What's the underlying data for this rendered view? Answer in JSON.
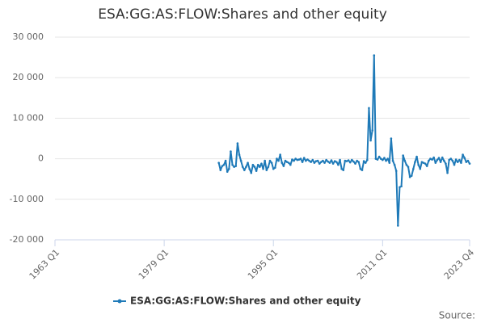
{
  "chart_data": {
    "type": "line",
    "title": "ESA:GG:AS:FLOW:Shares and other equity",
    "x": [
      "1987 Q1",
      "1987 Q2",
      "1987 Q3",
      "1987 Q4",
      "1988 Q1",
      "1988 Q2",
      "1988 Q3",
      "1988 Q4",
      "1989 Q1",
      "1989 Q2",
      "1989 Q3",
      "1989 Q4",
      "1990 Q1",
      "1990 Q2",
      "1990 Q3",
      "1990 Q4",
      "1991 Q1",
      "1991 Q2",
      "1991 Q3",
      "1991 Q4",
      "1992 Q1",
      "1992 Q2",
      "1992 Q3",
      "1992 Q4",
      "1993 Q1",
      "1993 Q2",
      "1993 Q3",
      "1993 Q4",
      "1994 Q1",
      "1994 Q2",
      "1994 Q3",
      "1994 Q4",
      "1995 Q1",
      "1995 Q2",
      "1995 Q3",
      "1995 Q4",
      "1996 Q1",
      "1996 Q2",
      "1996 Q3",
      "1996 Q4",
      "1997 Q1",
      "1997 Q2",
      "1997 Q3",
      "1997 Q4",
      "1998 Q1",
      "1998 Q2",
      "1998 Q3",
      "1998 Q4",
      "1999 Q1",
      "1999 Q2",
      "1999 Q3",
      "1999 Q4",
      "2000 Q1",
      "2000 Q2",
      "2000 Q3",
      "2000 Q4",
      "2001 Q1",
      "2001 Q2",
      "2001 Q3",
      "2001 Q4",
      "2002 Q1",
      "2002 Q2",
      "2002 Q3",
      "2002 Q4",
      "2003 Q1",
      "2003 Q2",
      "2003 Q3",
      "2003 Q4",
      "2004 Q1",
      "2004 Q2",
      "2004 Q3",
      "2004 Q4",
      "2005 Q1",
      "2005 Q2",
      "2005 Q3",
      "2005 Q4",
      "2006 Q1",
      "2006 Q2",
      "2006 Q3",
      "2006 Q4",
      "2007 Q1",
      "2007 Q2",
      "2007 Q3",
      "2007 Q4",
      "2008 Q1",
      "2008 Q2",
      "2008 Q3",
      "2008 Q4",
      "2009 Q1",
      "2009 Q2",
      "2009 Q3",
      "2009 Q4",
      "2010 Q1",
      "2010 Q2",
      "2010 Q3",
      "2010 Q4",
      "2011 Q1",
      "2011 Q2",
      "2011 Q3",
      "2011 Q4",
      "2012 Q1",
      "2012 Q2",
      "2012 Q3",
      "2012 Q4",
      "2013 Q1",
      "2013 Q2",
      "2013 Q3",
      "2013 Q4",
      "2014 Q1",
      "2014 Q2",
      "2014 Q3",
      "2014 Q4",
      "2015 Q1",
      "2015 Q2",
      "2015 Q3",
      "2015 Q4",
      "2016 Q1",
      "2016 Q2",
      "2016 Q3",
      "2016 Q4",
      "2017 Q1",
      "2017 Q2",
      "2017 Q3",
      "2017 Q4",
      "2018 Q1",
      "2018 Q2",
      "2018 Q3",
      "2018 Q4",
      "2019 Q1",
      "2019 Q2",
      "2019 Q3",
      "2019 Q4",
      "2020 Q1",
      "2020 Q2",
      "2020 Q3",
      "2020 Q4",
      "2021 Q1",
      "2021 Q2",
      "2021 Q3",
      "2021 Q4",
      "2022 Q1",
      "2022 Q2",
      "2022 Q3",
      "2022 Q4",
      "2023 Q1",
      "2023 Q2",
      "2023 Q3",
      "2023 Q4"
    ],
    "series": [
      {
        "name": "ESA:GG:AS:FLOW:Shares and other equity",
        "color": "#1f7ab8",
        "values": [
          -1000,
          -2800,
          -1800,
          -1500,
          -500,
          -3200,
          -2500,
          1800,
          -1500,
          -2000,
          -1800,
          3800,
          1000,
          -500,
          -2000,
          -2800,
          -2000,
          -1000,
          -2500,
          -3500,
          -1500,
          -2000,
          -3000,
          -1500,
          -2000,
          -1200,
          -2500,
          -500,
          -2800,
          -2000,
          -500,
          -1000,
          -2500,
          -2200,
          0,
          -500,
          1000,
          -1000,
          -1800,
          -500,
          -800,
          -1000,
          -1500,
          -200,
          -500,
          0,
          -300,
          -200,
          0,
          -800,
          200,
          -500,
          -200,
          -500,
          -800,
          -300,
          -1000,
          -600,
          -500,
          -1200,
          -800,
          -500,
          -1000,
          -300,
          -700,
          -1000,
          -400,
          -1200,
          -600,
          -800,
          -1500,
          -300,
          -2500,
          -2800,
          -500,
          -600,
          -400,
          -900,
          -300,
          -700,
          -1200,
          -500,
          -800,
          -2500,
          -2800,
          -600,
          -1000,
          -300,
          12500,
          4500,
          7000,
          25500,
          0,
          -200,
          500,
          0,
          -300,
          200,
          -500,
          0,
          -1000,
          5000,
          -500,
          -1500,
          -3000,
          -16500,
          -7000,
          -6800,
          800,
          -500,
          -1500,
          -2000,
          -4500,
          -4200,
          -2500,
          -800,
          500,
          -1500,
          -2500,
          -800,
          -1000,
          -1200,
          -1800,
          -500,
          0,
          -200,
          300,
          -1000,
          -300,
          200,
          -800,
          300,
          -500,
          -1200,
          -3500,
          -300,
          0,
          -500,
          -1500,
          -200,
          -800,
          -300,
          -1000,
          1000,
          200,
          -800,
          -500,
          -1200
        ]
      }
    ],
    "xlim": [
      "1963 Q1",
      "2023 Q4"
    ],
    "xticks": [
      "1963 Q1",
      "1979 Q1",
      "1995 Q1",
      "2011 Q1",
      "2023 Q4"
    ],
    "ylim": [
      -20000,
      30000
    ],
    "yticks": [
      {
        "value": -20000,
        "label": "-20 000"
      },
      {
        "value": -10000,
        "label": "-10 000"
      },
      0,
      {
        "value": 10000,
        "label": "10 000"
      },
      {
        "value": 20000,
        "label": "20 000"
      },
      {
        "value": 30000,
        "label": "30 000"
      }
    ],
    "grid": true,
    "source": "Source:"
  }
}
